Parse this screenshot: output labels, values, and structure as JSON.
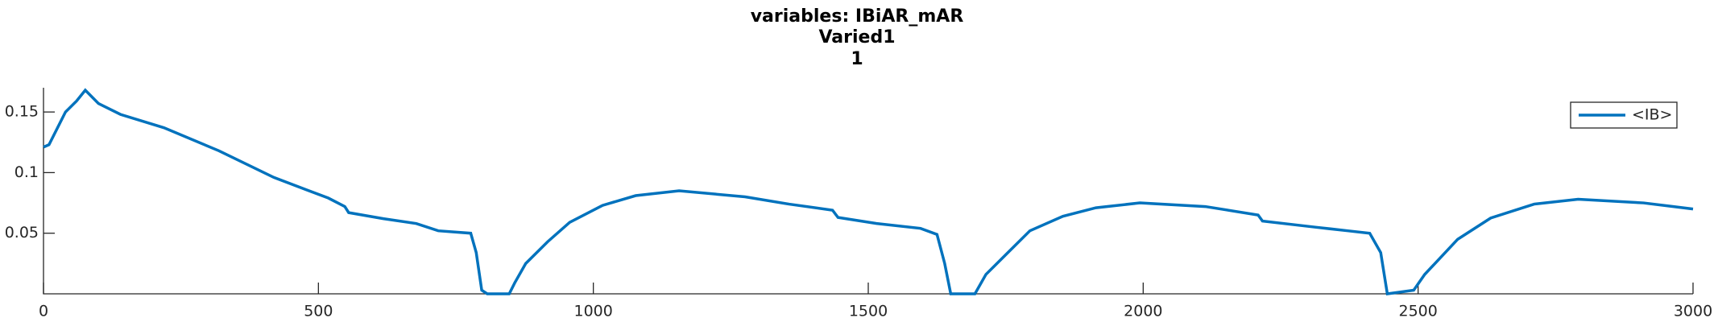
{
  "chart_data": {
    "type": "line",
    "title": "variables: IBiAR_mAR",
    "subtitle": [
      "Varied1",
      "1"
    ],
    "x": [
      0,
      10,
      40,
      60,
      76,
      100,
      140,
      219,
      319,
      419,
      518,
      548,
      555,
      618,
      678,
      718,
      777,
      787,
      797,
      807,
      847,
      857,
      877,
      917,
      957,
      1017,
      1077,
      1156,
      1276,
      1356,
      1435,
      1445,
      1515,
      1595,
      1625,
      1639,
      1650,
      1694,
      1714,
      1754,
      1794,
      1854,
      1914,
      1994,
      2113,
      2209,
      2217,
      2313,
      2372,
      2412,
      2432,
      2444,
      2492,
      2512,
      2572,
      2632,
      2711,
      2791,
      2910,
      3000
    ],
    "series": [
      {
        "name": "<IB>",
        "color": "#0072bd",
        "values": [
          0.121,
          0.123,
          0.15,
          0.159,
          0.168,
          0.157,
          0.148,
          0.137,
          0.118,
          0.096,
          0.079,
          0.072,
          0.067,
          0.062,
          0.058,
          0.052,
          0.05,
          0.034,
          0.003,
          0,
          0,
          0.009,
          0.025,
          0.043,
          0.059,
          0.073,
          0.081,
          0.085,
          0.08,
          0.074,
          0.069,
          0.063,
          0.058,
          0.054,
          0.049,
          0.025,
          0,
          0,
          0.016,
          0.034,
          0.052,
          0.064,
          0.071,
          0.075,
          0.072,
          0.065,
          0.06,
          0.055,
          0.052,
          0.05,
          0.034,
          0,
          0.003,
          0.016,
          0.045,
          0.0625,
          0.074,
          0.078,
          0.075,
          0.07
        ]
      }
    ],
    "xlim": [
      0,
      3000
    ],
    "xticks": [
      0,
      500,
      1000,
      1500,
      2000,
      2500,
      3000
    ],
    "ylim": [
      0,
      0.17
    ],
    "yticks": [
      0.05,
      0.1,
      0.15
    ],
    "legend": "top-right"
  }
}
